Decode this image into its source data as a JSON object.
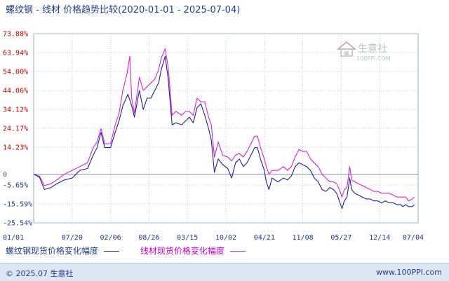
{
  "title": "螺纹钢 - 线材 价格趋势比较(2020-01-01 - 2025-07-04)",
  "watermark": {
    "text_cn": "生意社",
    "text_en": "100PPI.COM"
  },
  "footer": {
    "left": "© 2025.07 生意社",
    "right": "www.100PPI.com"
  },
  "colors": {
    "series1": "#1f1fa8",
    "series2": "#dd22dd",
    "tick_red": "#cc0000",
    "tick_blue": "#1f3c8a"
  },
  "chart_data": {
    "type": "line",
    "title": "螺纹钢 - 线材 价格趋势比较(2020-01-01 - 2025-07-04)",
    "xlabel": "",
    "ylabel": "",
    "x_ticks": [
      "01/01",
      "07/20",
      "02/06",
      "08/26",
      "03/15",
      "10/02",
      "04/21",
      "11/08",
      "05/27",
      "12/14",
      "07/04"
    ],
    "y_ticks": [
      {
        "value": 73.88,
        "label": "73.88%"
      },
      {
        "value": 63.94,
        "label": "63.94%"
      },
      {
        "value": 54.0,
        "label": "54.00%"
      },
      {
        "value": 44.06,
        "label": "44.06%"
      },
      {
        "value": 34.12,
        "label": "34.12%"
      },
      {
        "value": 24.17,
        "label": "24.17%"
      },
      {
        "value": 14.23,
        "label": "14.23%"
      },
      {
        "value": 0,
        "label": "0"
      },
      {
        "value": -5.65,
        "label": "-5.65%"
      },
      {
        "value": -15.59,
        "label": "-15.59%"
      },
      {
        "value": -25.54,
        "label": "-25.54%"
      }
    ],
    "ylim": [
      -25.54,
      73.88
    ],
    "x_range": [
      0,
      10
    ],
    "grid": true,
    "legend": "bottom",
    "series": [
      {
        "name": "螺纹钢现货价格变化幅度",
        "color": "#1f1fa8",
        "points": [
          [
            0,
            0
          ],
          [
            0.15,
            -1.5
          ],
          [
            0.28,
            -8
          ],
          [
            0.45,
            -7
          ],
          [
            0.6,
            -5
          ],
          [
            0.8,
            -3
          ],
          [
            1.0,
            -2
          ],
          [
            1.2,
            2
          ],
          [
            1.4,
            3
          ],
          [
            1.55,
            10
          ],
          [
            1.65,
            14
          ],
          [
            1.75,
            22
          ],
          [
            1.85,
            14
          ],
          [
            2.0,
            14
          ],
          [
            2.12,
            22
          ],
          [
            2.22,
            28
          ],
          [
            2.32,
            36
          ],
          [
            2.45,
            42
          ],
          [
            2.55,
            36
          ],
          [
            2.62,
            30
          ],
          [
            2.75,
            44
          ],
          [
            2.85,
            34
          ],
          [
            2.95,
            40
          ],
          [
            3.05,
            40
          ],
          [
            3.15,
            44
          ],
          [
            3.25,
            48
          ],
          [
            3.32,
            55
          ],
          [
            3.42,
            62
          ],
          [
            3.5,
            50
          ],
          [
            3.55,
            38
          ],
          [
            3.6,
            26
          ],
          [
            3.7,
            27
          ],
          [
            3.85,
            26
          ],
          [
            3.95,
            28
          ],
          [
            4.05,
            30
          ],
          [
            4.15,
            27
          ],
          [
            4.25,
            35
          ],
          [
            4.35,
            37
          ],
          [
            4.45,
            31
          ],
          [
            4.55,
            24
          ],
          [
            4.62,
            18
          ],
          [
            4.7,
            1
          ],
          [
            4.8,
            8
          ],
          [
            4.92,
            5
          ],
          [
            5.05,
            3
          ],
          [
            5.15,
            -2
          ],
          [
            5.25,
            6
          ],
          [
            5.35,
            8
          ],
          [
            5.45,
            4
          ],
          [
            5.55,
            6
          ],
          [
            5.65,
            10
          ],
          [
            5.75,
            14
          ],
          [
            5.82,
            14
          ],
          [
            5.9,
            8
          ],
          [
            6.0,
            2
          ],
          [
            6.05,
            -4
          ],
          [
            6.12,
            -8
          ],
          [
            6.2,
            -2
          ],
          [
            6.35,
            -4
          ],
          [
            6.5,
            -2
          ],
          [
            6.6,
            -3
          ],
          [
            6.7,
            -1
          ],
          [
            6.8,
            4
          ],
          [
            6.9,
            6
          ],
          [
            7.0,
            5
          ],
          [
            7.1,
            4
          ],
          [
            7.2,
            2
          ],
          [
            7.3,
            -2
          ],
          [
            7.4,
            -4
          ],
          [
            7.5,
            -8
          ],
          [
            7.6,
            -9
          ],
          [
            7.7,
            -7
          ],
          [
            7.8,
            -8
          ],
          [
            7.88,
            -10
          ],
          [
            7.95,
            -14
          ],
          [
            8.02,
            -18
          ],
          [
            8.08,
            -14
          ],
          [
            8.15,
            -12
          ],
          [
            8.22,
            -2
          ],
          [
            8.27,
            -8
          ],
          [
            8.35,
            -10
          ],
          [
            8.45,
            -11
          ],
          [
            8.55,
            -12
          ],
          [
            8.65,
            -13
          ],
          [
            8.75,
            -13
          ],
          [
            8.85,
            -14
          ],
          [
            8.95,
            -14
          ],
          [
            9.05,
            -15
          ],
          [
            9.15,
            -14
          ],
          [
            9.25,
            -15
          ],
          [
            9.35,
            -15
          ],
          [
            9.45,
            -16
          ],
          [
            9.55,
            -16
          ],
          [
            9.6,
            -17
          ],
          [
            9.68,
            -16
          ],
          [
            9.75,
            -17
          ],
          [
            9.85,
            -17
          ],
          [
            9.9,
            -16
          ]
        ]
      },
      {
        "name": "线材现货价格变化幅度",
        "color": "#dd22dd",
        "points": [
          [
            0,
            0
          ],
          [
            0.15,
            -1
          ],
          [
            0.28,
            -6
          ],
          [
            0.45,
            -5
          ],
          [
            0.6,
            -3
          ],
          [
            0.8,
            0
          ],
          [
            1.0,
            2
          ],
          [
            1.2,
            4
          ],
          [
            1.4,
            6
          ],
          [
            1.55,
            14
          ],
          [
            1.65,
            17
          ],
          [
            1.75,
            24
          ],
          [
            1.85,
            16
          ],
          [
            2.0,
            16
          ],
          [
            2.12,
            26
          ],
          [
            2.22,
            32
          ],
          [
            2.32,
            44
          ],
          [
            2.42,
            52
          ],
          [
            2.5,
            62
          ],
          [
            2.55,
            40
          ],
          [
            2.62,
            32
          ],
          [
            2.75,
            51
          ],
          [
            2.85,
            44
          ],
          [
            2.95,
            46
          ],
          [
            3.05,
            48
          ],
          [
            3.15,
            50
          ],
          [
            3.25,
            55
          ],
          [
            3.32,
            61
          ],
          [
            3.42,
            66
          ],
          [
            3.5,
            56
          ],
          [
            3.55,
            44
          ],
          [
            3.6,
            31
          ],
          [
            3.7,
            33
          ],
          [
            3.85,
            31
          ],
          [
            3.95,
            33
          ],
          [
            4.05,
            33
          ],
          [
            4.15,
            31
          ],
          [
            4.25,
            40
          ],
          [
            4.35,
            38
          ],
          [
            4.45,
            38
          ],
          [
            4.55,
            30
          ],
          [
            4.62,
            26
          ],
          [
            4.7,
            9
          ],
          [
            4.8,
            17
          ],
          [
            4.92,
            10
          ],
          [
            5.05,
            9
          ],
          [
            5.15,
            7
          ],
          [
            5.25,
            10
          ],
          [
            5.35,
            11
          ],
          [
            5.45,
            9
          ],
          [
            5.55,
            12
          ],
          [
            5.65,
            16
          ],
          [
            5.75,
            20
          ],
          [
            5.82,
            20
          ],
          [
            5.9,
            14
          ],
          [
            6.0,
            8
          ],
          [
            6.05,
            4
          ],
          [
            6.12,
            0
          ],
          [
            6.2,
            2
          ],
          [
            6.35,
            2
          ],
          [
            6.5,
            4
          ],
          [
            6.6,
            2
          ],
          [
            6.7,
            4
          ],
          [
            6.8,
            9
          ],
          [
            6.9,
            13
          ],
          [
            7.0,
            12
          ],
          [
            7.1,
            12
          ],
          [
            7.2,
            8
          ],
          [
            7.3,
            6
          ],
          [
            7.4,
            4
          ],
          [
            7.5,
            0
          ],
          [
            7.6,
            -2
          ],
          [
            7.7,
            -4
          ],
          [
            7.8,
            -4
          ],
          [
            7.88,
            -5
          ],
          [
            7.95,
            -8
          ],
          [
            8.02,
            -12
          ],
          [
            8.08,
            -8
          ],
          [
            8.15,
            -7
          ],
          [
            8.22,
            4
          ],
          [
            8.27,
            -3
          ],
          [
            8.35,
            -4
          ],
          [
            8.45,
            -5
          ],
          [
            8.55,
            -6
          ],
          [
            8.65,
            -7
          ],
          [
            8.75,
            -8
          ],
          [
            8.85,
            -9
          ],
          [
            8.95,
            -9
          ],
          [
            9.05,
            -10
          ],
          [
            9.15,
            -10
          ],
          [
            9.25,
            -10
          ],
          [
            9.35,
            -11
          ],
          [
            9.45,
            -12
          ],
          [
            9.55,
            -12
          ],
          [
            9.6,
            -12
          ],
          [
            9.68,
            -12
          ],
          [
            9.75,
            -14
          ],
          [
            9.85,
            -13
          ],
          [
            9.9,
            -12
          ]
        ]
      }
    ]
  }
}
